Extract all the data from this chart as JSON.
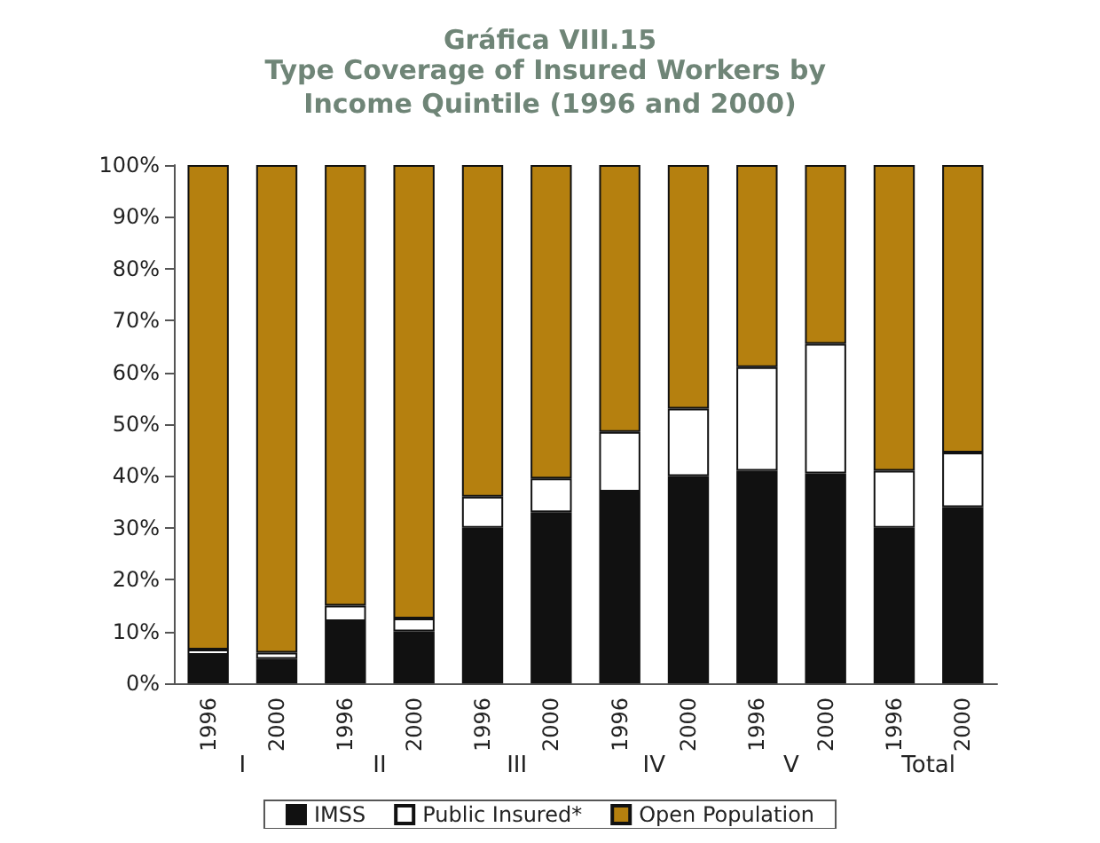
{
  "chart_data": {
    "type": "bar",
    "stacked": true,
    "title": "Gráfica VIII.15",
    "subtitle": "Type Coverage of Insured Workers by Income Quintile (1996 and 2000)",
    "categories": [
      "1996",
      "2000",
      "1996",
      "2000",
      "1996",
      "2000",
      "1996",
      "2000",
      "1996",
      "2000",
      "1996",
      "2000"
    ],
    "series": [
      {
        "name": "IMSS",
        "color": "#111111",
        "values": [
          5.5,
          4.7,
          12,
          10,
          30,
          33,
          37,
          40,
          41,
          40.5,
          30,
          34
        ]
      },
      {
        "name": "Public Insured*",
        "color": "#ffffff",
        "values": [
          1,
          1.2,
          3,
          2.5,
          6,
          6.5,
          11.5,
          13,
          20,
          25,
          11,
          10.5
        ]
      },
      {
        "name": "Open Population",
        "color": "#b5800f",
        "values": [
          93.5,
          94.1,
          85,
          87.5,
          64,
          60.5,
          51.5,
          47,
          39,
          34.5,
          59,
          55.5
        ]
      }
    ],
    "annotations": [
      "I",
      "II",
      "III",
      "IV",
      "V",
      "Total"
    ],
    "ylim": [
      0,
      100
    ],
    "yticks": [
      {
        "value": 0,
        "label": "0%"
      },
      {
        "value": 10,
        "label": "10%"
      },
      {
        "value": 20,
        "label": "20%"
      },
      {
        "value": 30,
        "label": "30%"
      },
      {
        "value": 40,
        "label": "40%"
      },
      {
        "value": 50,
        "label": "50%"
      },
      {
        "value": 60,
        "label": "60%"
      },
      {
        "value": 70,
        "label": "70%"
      },
      {
        "value": 80,
        "label": "80%"
      },
      {
        "value": 90,
        "label": "90%"
      },
      {
        "value": 100,
        "label": "100%"
      }
    ],
    "grid": false,
    "legend": "bottom"
  }
}
